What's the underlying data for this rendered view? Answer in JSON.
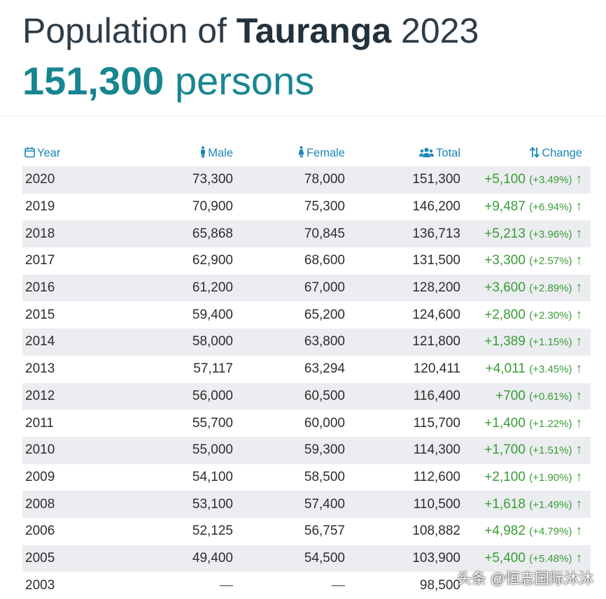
{
  "title": {
    "prefix": "Population of ",
    "city": "Tauranga",
    "year": "2023"
  },
  "headline": {
    "value": "151,300",
    "unit": " persons"
  },
  "columns": {
    "year": "Year",
    "male": "Male",
    "female": "Female",
    "total": "Total",
    "change": "Change",
    "icons": {
      "year": "calendar-icon",
      "male": "male-person-icon",
      "female": "female-person-icon",
      "total": "group-icon",
      "change": "sort-icon"
    }
  },
  "colors": {
    "accent": "#178691",
    "header_blue": "#1c87b8",
    "positive": "#3b9c36",
    "stripe": "#ebedf0"
  },
  "rows": [
    {
      "year": "2020",
      "male": "73,300",
      "female": "78,000",
      "total": "151,300",
      "change": "+5,100",
      "pct": "(+3.49%)",
      "arrow": "↑"
    },
    {
      "year": "2019",
      "male": "70,900",
      "female": "75,300",
      "total": "146,200",
      "change": "+9,487",
      "pct": "(+6.94%)",
      "arrow": "↑"
    },
    {
      "year": "2018",
      "male": "65,868",
      "female": "70,845",
      "total": "136,713",
      "change": "+5,213",
      "pct": "(+3.96%)",
      "arrow": "↑"
    },
    {
      "year": "2017",
      "male": "62,900",
      "female": "68,600",
      "total": "131,500",
      "change": "+3,300",
      "pct": "(+2.57%)",
      "arrow": "↑"
    },
    {
      "year": "2016",
      "male": "61,200",
      "female": "67,000",
      "total": "128,200",
      "change": "+3,600",
      "pct": "(+2.89%)",
      "arrow": "↑"
    },
    {
      "year": "2015",
      "male": "59,400",
      "female": "65,200",
      "total": "124,600",
      "change": "+2,800",
      "pct": "(+2.30%)",
      "arrow": "↑"
    },
    {
      "year": "2014",
      "male": "58,000",
      "female": "63,800",
      "total": "121,800",
      "change": "+1,389",
      "pct": "(+1.15%)",
      "arrow": "↑"
    },
    {
      "year": "2013",
      "male": "57,117",
      "female": "63,294",
      "total": "120,411",
      "change": "+4,011",
      "pct": "(+3.45%)",
      "arrow": "↑"
    },
    {
      "year": "2012",
      "male": "56,000",
      "female": "60,500",
      "total": "116,400",
      "change": "+700",
      "pct": "(+0.61%)",
      "arrow": "↑"
    },
    {
      "year": "2011",
      "male": "55,700",
      "female": "60,000",
      "total": "115,700",
      "change": "+1,400",
      "pct": "(+1.22%)",
      "arrow": "↑"
    },
    {
      "year": "2010",
      "male": "55,000",
      "female": "59,300",
      "total": "114,300",
      "change": "+1,700",
      "pct": "(+1.51%)",
      "arrow": "↑"
    },
    {
      "year": "2009",
      "male": "54,100",
      "female": "58,500",
      "total": "112,600",
      "change": "+2,100",
      "pct": "(+1.90%)",
      "arrow": "↑"
    },
    {
      "year": "2008",
      "male": "53,100",
      "female": "57,400",
      "total": "110,500",
      "change": "+1,618",
      "pct": "(+1.49%)",
      "arrow": "↑"
    },
    {
      "year": "2006",
      "male": "52,125",
      "female": "56,757",
      "total": "108,882",
      "change": "+4,982",
      "pct": "(+4.79%)",
      "arrow": "↑"
    },
    {
      "year": "2005",
      "male": "49,400",
      "female": "54,500",
      "total": "103,900",
      "change": "+5,400",
      "pct": "(+5.48%)",
      "arrow": "↑"
    },
    {
      "year": "2003",
      "male": "—",
      "female": "—",
      "total": "98,500",
      "change": "",
      "pct": "",
      "arrow": ""
    }
  ],
  "watermark": "头条 @恒志国际沐沐"
}
